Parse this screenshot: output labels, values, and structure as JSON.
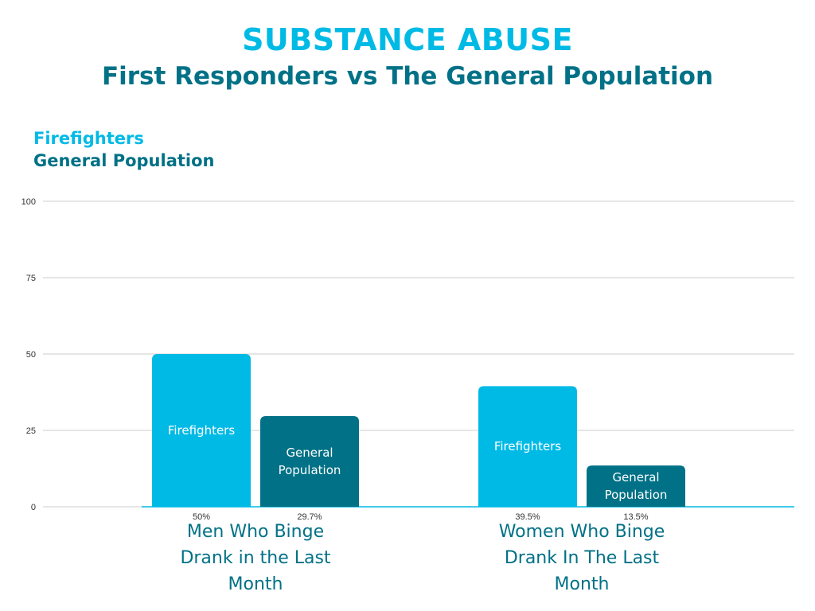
{
  "header": {
    "title": "SUBSTANCE ABUSE",
    "subtitle": "First Responders vs The General Population"
  },
  "colors": {
    "firefighters": "#00bae6",
    "general_population": "#007186",
    "grid": "#cccccc",
    "axis_text": "#333333"
  },
  "chart_data": {
    "type": "bar",
    "legend": [
      "Firefighters",
      "General Population"
    ],
    "categories": [
      "Men Who Binge Drank in the Last Month",
      "Women Who Binge Drank In The Last Month"
    ],
    "category_lines": [
      [
        "Men Who Binge",
        "Drank in the Last",
        "Month"
      ],
      [
        "Women Who Binge",
        "Drank In The Last",
        "Month"
      ]
    ],
    "series": [
      {
        "name": "Firefighters",
        "bar_label": [
          "Firefighters"
        ],
        "values": [
          50,
          39.5
        ],
        "value_labels": [
          "50%",
          "39.5%"
        ]
      },
      {
        "name": "General Population",
        "bar_label": [
          "General",
          "Population"
        ],
        "values": [
          29.7,
          13.5
        ],
        "value_labels": [
          "29.7%",
          "13.5%"
        ]
      }
    ],
    "yticks": [
      "0",
      "25",
      "50",
      "75",
      "100"
    ],
    "ylim": [
      0,
      100
    ],
    "grid": true,
    "legend_position": "top-left"
  }
}
